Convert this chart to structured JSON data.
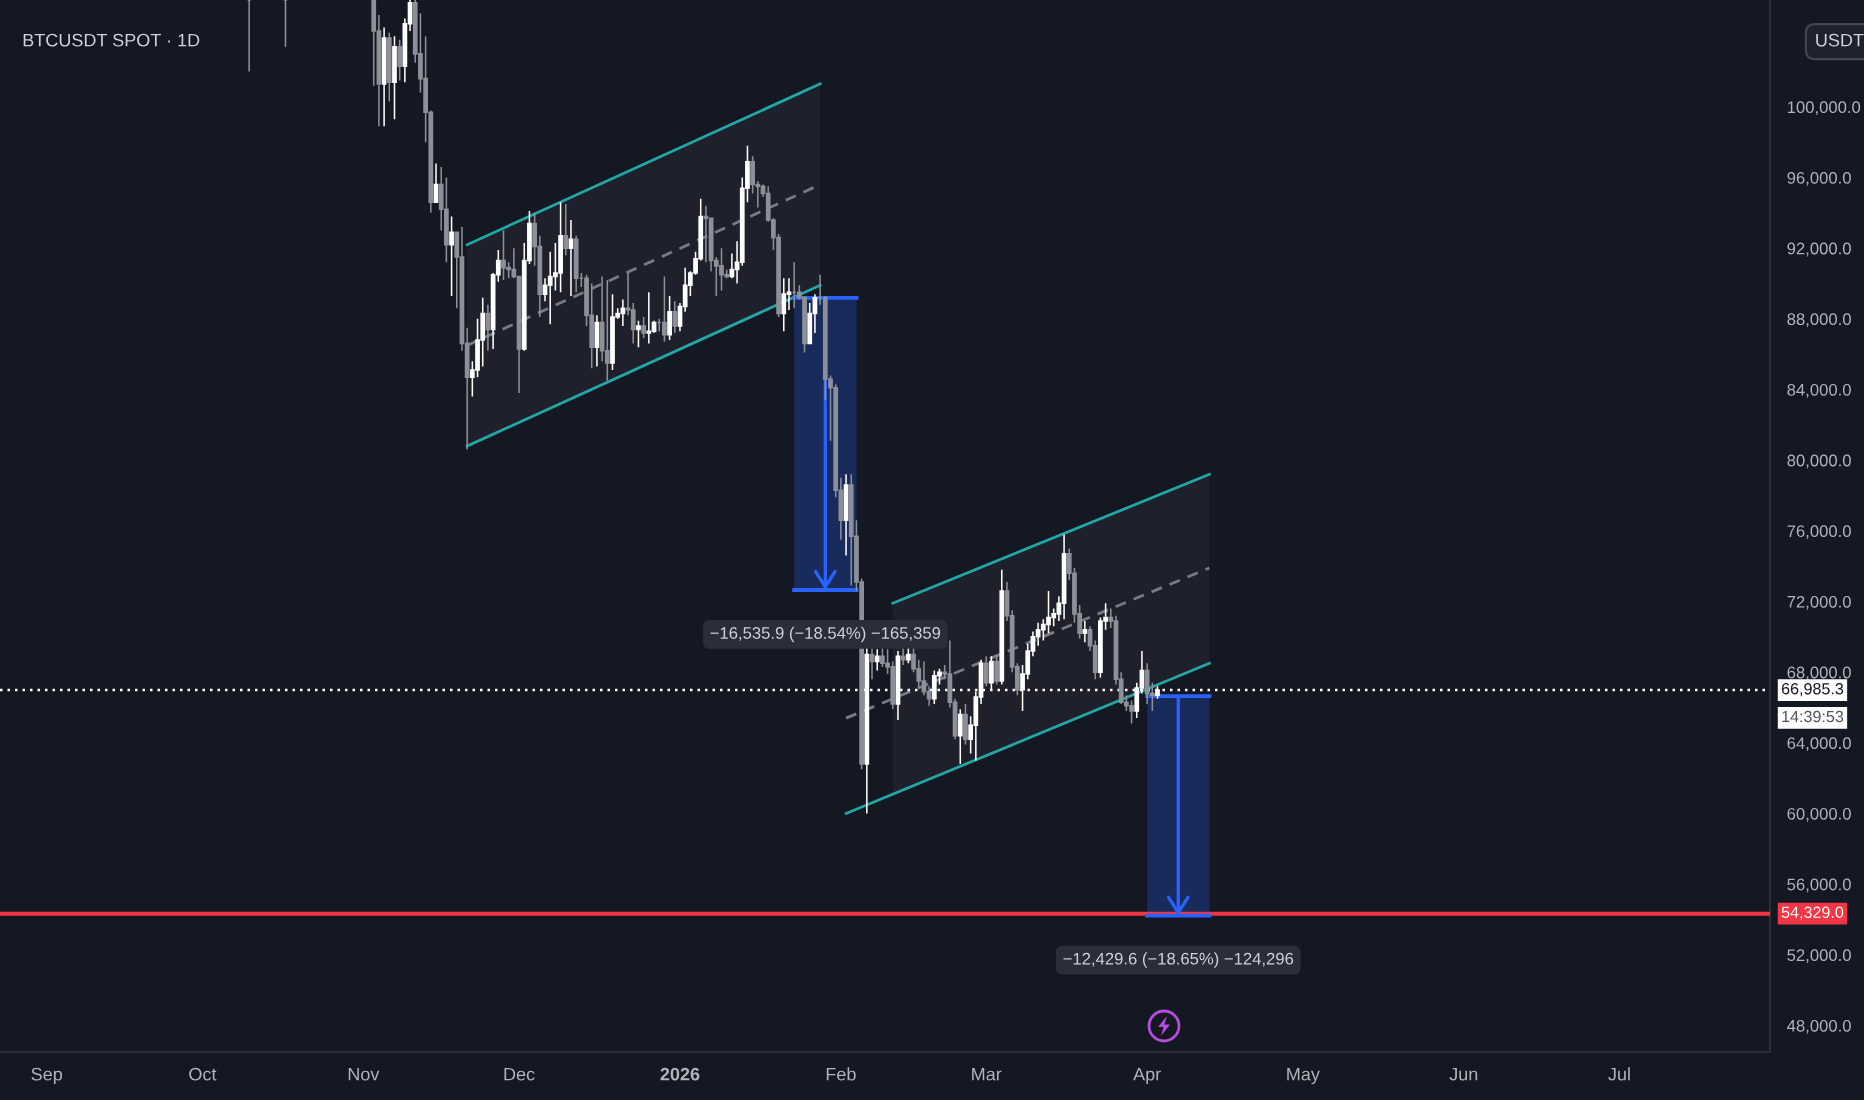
{
  "chart_data": {
    "type": "candlestick",
    "title": "BTCUSDT SPOT · 1D",
    "ylabel": "USDT",
    "x": [
      "2025-10-10",
      "2025-10-17",
      "2025-11-03",
      "2025-11-04",
      "2025-11-05",
      "2025-11-06",
      "2025-11-07",
      "2025-11-08",
      "2025-11-09",
      "2025-11-10",
      "2025-11-11",
      "2025-11-12",
      "2025-11-13",
      "2025-11-14",
      "2025-11-15",
      "2025-11-16",
      "2025-11-17",
      "2025-11-18",
      "2025-11-19",
      "2025-11-20",
      "2025-11-21",
      "2025-11-22",
      "2025-11-23",
      "2025-11-24",
      "2025-11-25",
      "2025-11-26",
      "2025-11-27",
      "2025-11-28",
      "2025-11-29",
      "2025-11-30",
      "2025-12-01",
      "2025-12-02",
      "2025-12-03",
      "2025-12-04",
      "2025-12-05",
      "2025-12-06",
      "2025-12-07",
      "2025-12-08",
      "2025-12-09",
      "2025-12-10",
      "2025-12-11",
      "2025-12-12",
      "2025-12-13",
      "2025-12-14",
      "2025-12-15",
      "2025-12-16",
      "2025-12-17",
      "2025-12-18",
      "2025-12-19",
      "2025-12-20",
      "2025-12-21",
      "2025-12-22",
      "2025-12-23",
      "2025-12-24",
      "2025-12-25",
      "2025-12-26",
      "2025-12-27",
      "2025-12-28",
      "2025-12-29",
      "2025-12-30",
      "2025-12-31",
      "2026-01-01",
      "2026-01-02",
      "2026-01-03",
      "2026-01-04",
      "2026-01-05",
      "2026-01-06",
      "2026-01-07",
      "2026-01-08",
      "2026-01-09",
      "2026-01-10",
      "2026-01-11",
      "2026-01-12",
      "2026-01-13",
      "2026-01-14",
      "2026-01-15",
      "2026-01-16",
      "2026-01-17",
      "2026-01-18",
      "2026-01-19",
      "2026-01-20",
      "2026-01-21",
      "2026-01-22",
      "2026-01-23",
      "2026-01-24",
      "2026-01-25",
      "2026-01-26",
      "2026-01-27",
      "2026-01-28",
      "2026-01-29",
      "2026-01-30",
      "2026-01-31",
      "2026-02-01",
      "2026-02-02",
      "2026-02-03",
      "2026-02-04",
      "2026-02-05",
      "2026-02-06",
      "2026-02-07",
      "2026-02-08",
      "2026-02-09",
      "2026-02-10",
      "2026-02-11",
      "2026-02-12",
      "2026-02-13",
      "2026-02-14",
      "2026-02-15",
      "2026-02-16",
      "2026-02-17",
      "2026-02-18",
      "2026-02-19",
      "2026-02-20",
      "2026-02-21",
      "2026-02-22",
      "2026-02-23",
      "2026-02-24",
      "2026-02-25",
      "2026-02-26",
      "2026-02-27",
      "2026-02-28",
      "2026-03-01",
      "2026-03-02",
      "2026-03-03",
      "2026-03-04",
      "2026-03-05",
      "2026-03-06",
      "2026-03-07",
      "2026-03-08",
      "2026-03-09",
      "2026-03-10",
      "2026-03-11",
      "2026-03-12",
      "2026-03-13",
      "2026-03-14",
      "2026-03-15",
      "2026-03-16",
      "2026-03-17",
      "2026-03-18",
      "2026-03-19",
      "2026-03-20",
      "2026-03-21",
      "2026-03-22",
      "2026-03-23",
      "2026-03-24",
      "2026-03-25",
      "2026-03-26",
      "2026-03-27",
      "2026-03-28",
      "2026-03-29",
      "2026-03-30",
      "2026-03-31",
      "2026-04-01",
      "2026-04-02",
      "2026-04-03"
    ],
    "ohlc": [
      [
        106050,
        106050,
        102000,
        106050
      ],
      [
        106050,
        106050,
        103400,
        106050
      ],
      [
        106050,
        106050,
        101200,
        104300
      ],
      [
        104300,
        105200,
        98900,
        101300
      ],
      [
        101300,
        104500,
        98900,
        103900
      ],
      [
        103900,
        104200,
        100300,
        101400
      ],
      [
        101400,
        104000,
        99300,
        103400
      ],
      [
        103400,
        103800,
        101500,
        102300
      ],
      [
        102300,
        105000,
        101400,
        104700
      ],
      [
        104700,
        106050,
        104300,
        105900
      ],
      [
        105900,
        106050,
        102500,
        103000
      ],
      [
        103000,
        105300,
        100800,
        101600
      ],
      [
        101600,
        104000,
        98000,
        99700
      ],
      [
        99700,
        99800,
        94000,
        94600
      ],
      [
        94600,
        96800,
        94600,
        95600
      ],
      [
        95600,
        96600,
        93000,
        94200
      ],
      [
        94200,
        96000,
        91200,
        92200
      ],
      [
        92200,
        93800,
        89300,
        92900
      ],
      [
        92900,
        92900,
        88600,
        91500
      ],
      [
        91500,
        93200,
        86200,
        86600
      ],
      [
        86600,
        87500,
        80600,
        84700
      ],
      [
        84700,
        85600,
        83600,
        85100
      ],
      [
        85100,
        88000,
        84700,
        86800
      ],
      [
        86800,
        89200,
        85300,
        88300
      ],
      [
        88300,
        88800,
        86200,
        87400
      ],
      [
        87400,
        90600,
        86300,
        90500
      ],
      [
        90500,
        91900,
        90100,
        91300
      ],
      [
        91300,
        93000,
        90200,
        90900
      ],
      [
        90900,
        91200,
        90300,
        90800
      ],
      [
        90800,
        92000,
        90300,
        90400
      ],
      [
        90400,
        90400,
        83800,
        86300
      ],
      [
        86300,
        92300,
        86200,
        91300
      ],
      [
        91300,
        94100,
        91100,
        93400
      ],
      [
        93400,
        94000,
        91000,
        92100
      ],
      [
        92100,
        92700,
        88100,
        89400
      ],
      [
        89400,
        90300,
        89000,
        89900
      ],
      [
        89900,
        91800,
        87700,
        90400
      ],
      [
        90400,
        92300,
        89600,
        90600
      ],
      [
        90600,
        94600,
        89500,
        92700
      ],
      [
        92700,
        94500,
        91600,
        92000
      ],
      [
        92000,
        93600,
        89300,
        92500
      ],
      [
        92500,
        92700,
        89500,
        90300
      ],
      [
        90300,
        90600,
        89800,
        90300
      ],
      [
        90300,
        90500,
        87600,
        88200
      ],
      [
        88200,
        90000,
        85200,
        86400
      ],
      [
        86400,
        88200,
        85300,
        87800
      ],
      [
        87800,
        90400,
        85600,
        86200
      ],
      [
        86200,
        90200,
        84500,
        85500
      ],
      [
        85500,
        89400,
        85100,
        88100
      ],
      [
        88100,
        88600,
        88000,
        88300
      ],
      [
        88300,
        89100,
        87600,
        88600
      ],
      [
        88600,
        90600,
        88200,
        88500
      ],
      [
        88500,
        88900,
        86600,
        87400
      ],
      [
        87400,
        87900,
        86400,
        87600
      ],
      [
        87600,
        88100,
        86900,
        87200
      ],
      [
        87200,
        89500,
        86600,
        87300
      ],
      [
        87300,
        87900,
        87200,
        87800
      ],
      [
        87800,
        88000,
        87300,
        87800
      ],
      [
        87800,
        90400,
        86700,
        87100
      ],
      [
        87100,
        89300,
        86800,
        88400
      ],
      [
        88400,
        89000,
        87200,
        87600
      ],
      [
        87600,
        88900,
        87300,
        88700
      ],
      [
        88700,
        90900,
        88400,
        89900
      ],
      [
        89900,
        90700,
        89300,
        90600
      ],
      [
        90600,
        91800,
        90500,
        91400
      ],
      [
        91400,
        94800,
        91300,
        93800
      ],
      [
        93800,
        94400,
        91200,
        93700
      ],
      [
        93700,
        93700,
        90700,
        91300
      ],
      [
        91300,
        91500,
        89300,
        91000
      ],
      [
        91000,
        92000,
        89600,
        90500
      ],
      [
        90500,
        90800,
        90300,
        90400
      ],
      [
        90400,
        91700,
        90300,
        90800
      ],
      [
        90800,
        92400,
        90000,
        91200
      ],
      [
        91200,
        96000,
        91000,
        95400
      ],
      [
        95400,
        97800,
        94600,
        96900
      ],
      [
        96900,
        97200,
        95100,
        95600
      ],
      [
        95600,
        95800,
        94300,
        95500
      ],
      [
        95500,
        95600,
        94900,
        95100
      ],
      [
        95100,
        95500,
        93500,
        93600
      ],
      [
        93600,
        93700,
        91900,
        92600
      ],
      [
        92600,
        92800,
        88100,
        88300
      ],
      [
        88300,
        90300,
        87300,
        89400
      ],
      [
        89400,
        90300,
        88500,
        89500
      ],
      [
        89500,
        91200,
        88600,
        89500
      ],
      [
        89500,
        89900,
        89100,
        89200
      ],
      [
        89200,
        89300,
        86100,
        86600
      ],
      [
        86600,
        88900,
        86600,
        88300
      ],
      [
        88300,
        89400,
        87200,
        89200
      ],
      [
        89200,
        90500,
        88800,
        89200
      ],
      [
        89200,
        89300,
        83400,
        84600
      ],
      [
        84600,
        84800,
        81100,
        84100
      ],
      [
        84100,
        84300,
        77900,
        78300
      ],
      [
        78300,
        79000,
        75500,
        76600
      ],
      [
        76600,
        79200,
        74600,
        78600
      ],
      [
        78600,
        79200,
        72900,
        75700
      ],
      [
        75700,
        76600,
        72600,
        73100
      ],
      [
        73100,
        73300,
        62500,
        62800
      ],
      [
        62800,
        69400,
        60000,
        69000
      ],
      [
        69000,
        69500,
        67600,
        68600
      ],
      [
        68600,
        69300,
        68100,
        68900
      ],
      [
        68900,
        69400,
        68300,
        68500
      ],
      [
        68500,
        69300,
        67900,
        68300
      ],
      [
        68300,
        68600,
        65900,
        66200
      ],
      [
        66200,
        69200,
        65300,
        68900
      ],
      [
        68900,
        69400,
        68400,
        68700
      ],
      [
        68700,
        69500,
        68500,
        69000
      ],
      [
        69000,
        69400,
        68000,
        68200
      ],
      [
        68200,
        68700,
        67100,
        67500
      ],
      [
        67500,
        68600,
        66700,
        66900
      ],
      [
        66900,
        67200,
        66100,
        66500
      ],
      [
        66500,
        68100,
        66200,
        67800
      ],
      [
        67800,
        68200,
        67300,
        68000
      ],
      [
        68000,
        68400,
        67600,
        67900
      ],
      [
        67900,
        69800,
        66000,
        66300
      ],
      [
        66300,
        66500,
        64200,
        64400
      ],
      [
        64400,
        65900,
        62800,
        65600
      ],
      [
        65600,
        66200,
        63900,
        64200
      ],
      [
        64200,
        65500,
        63400,
        65000
      ],
      [
        65000,
        66900,
        63000,
        66600
      ],
      [
        66600,
        68700,
        66200,
        68500
      ],
      [
        68500,
        68900,
        67200,
        67400
      ],
      [
        67400,
        68900,
        67000,
        68600
      ],
      [
        68600,
        69000,
        67300,
        67500
      ],
      [
        67500,
        73800,
        67300,
        72600
      ],
      [
        72600,
        73100,
        70900,
        71200
      ],
      [
        71200,
        71500,
        68000,
        68300
      ],
      [
        68300,
        68500,
        66700,
        67000
      ],
      [
        67000,
        68400,
        65800,
        67900
      ],
      [
        67900,
        69600,
        67600,
        69200
      ],
      [
        69200,
        70300,
        68900,
        70000
      ],
      [
        70000,
        70800,
        69500,
        70400
      ],
      [
        70400,
        71000,
        69800,
        70700
      ],
      [
        70700,
        72600,
        70200,
        71100
      ],
      [
        71100,
        71600,
        70600,
        71300
      ],
      [
        71300,
        72300,
        70900,
        71900
      ],
      [
        71900,
        75800,
        71000,
        74700
      ],
      [
        74700,
        75000,
        73200,
        73600
      ],
      [
        73600,
        73900,
        70800,
        71300
      ],
      [
        71300,
        71800,
        69900,
        70200
      ],
      [
        70200,
        70900,
        69700,
        70400
      ],
      [
        70400,
        70600,
        69200,
        69500
      ],
      [
        69500,
        69800,
        67600,
        68000
      ],
      [
        68000,
        71100,
        67700,
        70900
      ],
      [
        70900,
        71900,
        70400,
        71100
      ],
      [
        71100,
        71600,
        70500,
        70900
      ],
      [
        70900,
        71200,
        67300,
        67600
      ],
      [
        67600,
        68000,
        66200,
        66300
      ],
      [
        66300,
        66700,
        65800,
        66100
      ],
      [
        66100,
        66400,
        65100,
        65800
      ],
      [
        65800,
        67400,
        65400,
        67100
      ],
      [
        67100,
        69200,
        66800,
        68100
      ],
      [
        68100,
        68500,
        66200,
        66800
      ],
      [
        66800,
        67400,
        65800,
        66700
      ],
      [
        66700,
        67200,
        66500,
        66985.3
      ]
    ],
    "series": [
      {
        "type": "line",
        "x": [
          "2025-11-21",
          "2026-01-28"
        ],
        "values": [
          92200,
          101300
        ],
        "color": "#22a6a6"
      },
      {
        "type": "line",
        "x": [
          "2025-11-21",
          "2026-01-28"
        ],
        "values": [
          80800,
          89900
        ],
        "color": "#22a6a6"
      },
      {
        "type": "line",
        "x": [
          "2025-11-21",
          "2026-01-28"
        ],
        "values": [
          86500,
          95600
        ],
        "lower": [
          80800,
          89900
        ],
        "upper": [
          92200,
          101300
        ],
        "color": "#787b86",
        "line_style": "dashed"
      },
      {
        "type": "line",
        "x": [
          "2026-02-11",
          "2026-04-13"
        ],
        "values": [
          71900,
          79200
        ],
        "color": "#22a6a6"
      },
      {
        "type": "line",
        "x": [
          "2026-02-02",
          "2026-04-13"
        ],
        "values": [
          60000,
          68500
        ],
        "color": "#22a6a6"
      },
      {
        "type": "line",
        "x": [
          "2026-02-02",
          "2026-02-11",
          "2026-04-13"
        ],
        "values": [
          65400,
          66500,
          73900
        ],
        "lower": [
          null,
          61100,
          68500
        ],
        "upper": [
          null,
          71900,
          79200
        ],
        "color": "#787b86",
        "line_style": "dashed"
      },
      {
        "type": "bar",
        "x": [
          "2026-01-29"
        ],
        "base": [
          89190
        ],
        "values": [
          -16535.9
        ],
        "value_labels": [
          "−16,535.9 (−18.54%) −165,359"
        ],
        "color": "#2962ff"
      },
      {
        "type": "bar",
        "x": [
          "2026-04-07"
        ],
        "base": [
          66647
        ],
        "values": [
          -12429.6
        ],
        "value_labels": [
          "−12,429.6 (−18.65%) −124,296"
        ],
        "color": "#2962ff"
      }
    ],
    "xlim": [
      "2025-08-23",
      "2026-07-30"
    ],
    "ylim": [
      46500,
      106050
    ],
    "xticks": [
      {
        "value": "2025-09-01",
        "label": "Sep"
      },
      {
        "value": "2025-10-01",
        "label": "Oct"
      },
      {
        "value": "2025-11-01",
        "label": "Nov"
      },
      {
        "value": "2025-12-01",
        "label": "Dec"
      },
      {
        "value": "2026-01-01",
        "label": "2026"
      },
      {
        "value": "2026-02-01",
        "label": "Feb"
      },
      {
        "value": "2026-03-01",
        "label": "Mar"
      },
      {
        "value": "2026-04-01",
        "label": "Apr"
      },
      {
        "value": "2026-05-01",
        "label": "May"
      },
      {
        "value": "2026-06-01",
        "label": "Jun"
      },
      {
        "value": "2026-07-01",
        "label": "Jul"
      }
    ],
    "yticks": [
      {
        "value": 48000,
        "label": "48,000.0"
      },
      {
        "value": 52000,
        "label": "52,000.0"
      },
      {
        "value": 56000,
        "label": "56,000.0"
      },
      {
        "value": 60000,
        "label": "60,000.0"
      },
      {
        "value": 64000,
        "label": "64,000.0"
      },
      {
        "value": 68000,
        "label": "68,000.0"
      },
      {
        "value": 72000,
        "label": "72,000.0"
      },
      {
        "value": 76000,
        "label": "76,000.0"
      },
      {
        "value": 80000,
        "label": "80,000.0"
      },
      {
        "value": 84000,
        "label": "84,000.0"
      },
      {
        "value": 88000,
        "label": "88,000.0"
      },
      {
        "value": 92000,
        "label": "92,000.0"
      },
      {
        "value": 96000,
        "label": "96,000.0"
      },
      {
        "value": 100000,
        "label": "100,000.0"
      }
    ],
    "ref_lines": [
      {
        "axis": "y",
        "value": 66985.3,
        "label": "66,985.3",
        "color": "#ffffff",
        "line_style": "dotted"
      },
      {
        "axis": "y",
        "value": 54329.0,
        "label": "54,329.0",
        "color": "#f23645"
      }
    ],
    "annotations": [
      "14:39:53"
    ]
  }
}
